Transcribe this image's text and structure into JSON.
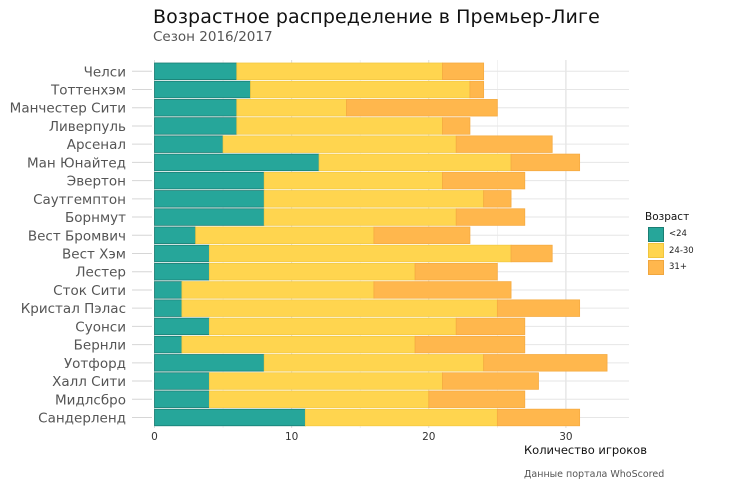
{
  "chart_data": {
    "type": "bar",
    "orientation": "horizontal",
    "stacked": true,
    "title": "Возрастное распределение в Премьер-Лиге",
    "subtitle": "Сезон 2016/2017",
    "xlabel": "Количество игроков",
    "ylabel": "",
    "caption": "Данные портала WhoScored",
    "xlim": [
      0,
      34.6
    ],
    "xticks": [
      0,
      10,
      20,
      30
    ],
    "grid": true,
    "legend": {
      "title": "Возраст",
      "position": "right",
      "entries": [
        "<24",
        "24-30",
        "31+"
      ]
    },
    "colors": {
      "<24": "#26a69a",
      "24-30": "#ffd54f",
      "31+": "#ffb74d"
    },
    "categories": [
      "Челси",
      "Тоттенхэм",
      "Манчестер Сити",
      "Ливерпуль",
      "Арсенал",
      "Ман Юнайтед",
      "Эвертон",
      "Саутгемптон",
      "Борнмут",
      "Вест Бромвич",
      "Вест Хэм",
      "Лестер",
      "Сток Сити",
      "Кристал Пэлас",
      "Суонси",
      "Бернли",
      "Уотфорд",
      "Халл Сити",
      "Мидлсбро",
      "Сандерленд"
    ],
    "series": [
      {
        "name": "<24",
        "values": [
          6,
          7,
          6,
          6,
          5,
          12,
          8,
          8,
          8,
          3,
          4,
          4,
          2,
          2,
          4,
          2,
          8,
          4,
          4,
          11
        ]
      },
      {
        "name": "24-30",
        "values": [
          15,
          16,
          8,
          15,
          17,
          14,
          13,
          16,
          14,
          13,
          22,
          15,
          14,
          23,
          18,
          17,
          16,
          17,
          16,
          14
        ]
      },
      {
        "name": "31+",
        "values": [
          3,
          1,
          11,
          2,
          7,
          5,
          6,
          2,
          5,
          7,
          3,
          6,
          10,
          6,
          5,
          8,
          9,
          7,
          7,
          6
        ]
      }
    ]
  }
}
